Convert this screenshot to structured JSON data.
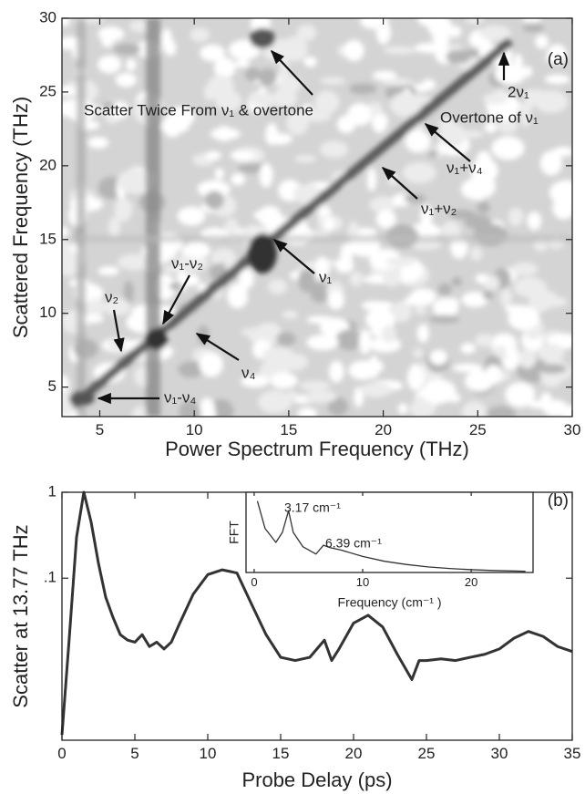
{
  "chart_data": [
    {
      "type": "contour",
      "panel_label": "(a)",
      "xlabel": "Power Spectrum Frequency (THz)",
      "ylabel": "Scattered Frequency (THz)",
      "xlim": [
        3,
        30
      ],
      "ylim": [
        3,
        30
      ],
      "xticks": [
        5,
        10,
        15,
        20,
        25,
        30
      ],
      "yticks": [
        5,
        10,
        15,
        20,
        25,
        30
      ],
      "annotations": [
        "Scatter Twice From ν₁ & overtone",
        "2ν₁",
        "Overtone of ν₁",
        "ν₁+ν₄",
        "ν₁+ν₂",
        "ν₁",
        "ν₁-ν₂",
        "ν₂",
        "ν₄",
        "ν₁-ν₄"
      ]
    },
    {
      "type": "line",
      "panel_label": "(b)",
      "xlabel": "Probe Delay (ps)",
      "ylabel": "Scatter at 13.77 THz",
      "ylog": true,
      "xlim": [
        0,
        35
      ],
      "ylim": [
        0.0013,
        1
      ],
      "xticks": [
        0,
        5,
        10,
        15,
        20,
        25,
        30,
        35
      ],
      "yticks": [
        {
          "value": 0.1,
          "label": ".1"
        },
        1
      ],
      "series": [
        {
          "color": "#333333",
          "x": [
            0,
            0.5,
            1,
            1.5,
            2,
            2.5,
            3,
            3.5,
            4,
            4.5,
            5,
            5.5,
            6,
            6.5,
            7,
            7.5,
            8,
            9,
            10,
            11,
            12,
            13,
            14,
            15,
            16,
            17,
            18,
            18.5,
            19,
            20,
            21,
            22,
            23,
            24,
            24.5,
            25,
            26,
            27,
            28,
            29,
            30,
            31,
            32,
            33,
            34,
            35
          ],
          "values": [
            0.0015,
            0.02,
            0.3,
            1.0,
            0.45,
            0.15,
            0.06,
            0.035,
            0.022,
            0.019,
            0.018,
            0.022,
            0.016,
            0.018,
            0.015,
            0.018,
            0.028,
            0.065,
            0.11,
            0.125,
            0.115,
            0.05,
            0.022,
            0.012,
            0.011,
            0.012,
            0.019,
            0.011,
            0.015,
            0.03,
            0.037,
            0.027,
            0.013,
            0.0066,
            0.011,
            0.011,
            0.0115,
            0.011,
            0.012,
            0.013,
            0.015,
            0.02,
            0.024,
            0.021,
            0.016,
            0.014
          ]
        }
      ]
    },
    {
      "type": "line",
      "xlabel": "Frequency (cm⁻¹ )",
      "ylabel": "FFT",
      "xlim": [
        -0.75,
        25.7
      ],
      "ylim": [
        0,
        1
      ],
      "xticks": [
        0,
        10,
        20
      ],
      "annotations": [
        "3.17 cm⁻¹",
        "6.39 cm⁻¹"
      ],
      "series": [
        {
          "color": "#333333",
          "x": [
            0.3,
            1,
            2,
            2.6,
            3.17,
            3.6,
            4.5,
            5.7,
            6.39,
            7,
            8,
            10,
            12,
            14,
            16,
            18,
            20,
            22,
            25
          ],
          "values": [
            0.89,
            0.55,
            0.375,
            0.5,
            0.77,
            0.5,
            0.32,
            0.23,
            0.34,
            0.31,
            0.28,
            0.2,
            0.14,
            0.1,
            0.07,
            0.05,
            0.035,
            0.025,
            0.015
          ]
        }
      ]
    }
  ]
}
